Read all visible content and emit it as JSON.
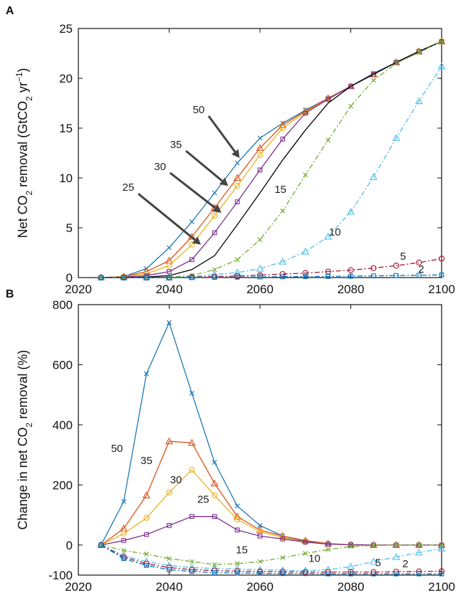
{
  "chart_data": [
    {
      "panel": "A",
      "type": "line",
      "ylabel_parts": [
        "Net CO",
        "2",
        " removal  (GtCO",
        "2",
        " yr",
        "−1",
        ")"
      ],
      "x": [
        2025,
        2030,
        2035,
        2040,
        2045,
        2050,
        2055,
        2060,
        2065,
        2070,
        2075,
        2080,
        2085,
        2090,
        2095,
        2100
      ],
      "xlim": [
        2020,
        2100
      ],
      "ylim": [
        0,
        25
      ],
      "xticks": [
        "2020",
        "2040",
        "2060",
        "2080",
        "2100"
      ],
      "yticks": [
        "0",
        "5",
        "10",
        "15",
        "20",
        "25"
      ],
      "grid": false,
      "series": [
        {
          "label": "50",
          "color": "#1f77b4",
          "dash": "solid",
          "marker": "x",
          "values": [
            0,
            0.1,
            0.9,
            3.0,
            5.6,
            8.5,
            11.5,
            14.0,
            15.5,
            16.8,
            18.0,
            19.2,
            20.5,
            21.6,
            22.6,
            23.7
          ]
        },
        {
          "label": "35",
          "color": "#d95319",
          "dash": "solid",
          "marker": "triangle",
          "values": [
            0,
            0.1,
            0.6,
            1.7,
            4.1,
            7.0,
            10.0,
            13.0,
            15.3,
            16.7,
            18.0,
            19.2,
            20.4,
            21.6,
            22.7,
            23.7
          ]
        },
        {
          "label": "30",
          "color": "#edb120",
          "dash": "solid",
          "marker": "circle",
          "values": [
            0,
            0.1,
            0.4,
            1.2,
            3.3,
            6.2,
            9.2,
            12.3,
            15.0,
            16.6,
            17.9,
            19.2,
            20.4,
            21.6,
            22.7,
            23.7
          ]
        },
        {
          "label": "25",
          "color": "#7e2f8e",
          "dash": "solid",
          "marker": "square",
          "values": [
            0,
            0.05,
            0.2,
            0.6,
            1.8,
            4.5,
            7.6,
            10.8,
            13.9,
            16.5,
            17.9,
            19.2,
            20.4,
            21.6,
            22.7,
            23.7
          ]
        },
        {
          "label": "15",
          "color": "#000000",
          "dash": "solid",
          "marker": "none",
          "values": [
            0,
            0,
            0.05,
            0.2,
            0.8,
            2.2,
            5.3,
            8.5,
            11.8,
            14.8,
            17.5,
            19.2,
            20.4,
            21.6,
            22.7,
            23.7
          ]
        },
        {
          "label": "10",
          "color": "#77ac30",
          "dash": "dashdot",
          "marker": "x",
          "values": [
            0,
            0,
            0,
            0.05,
            0.2,
            0.8,
            1.8,
            3.8,
            6.7,
            10.3,
            13.8,
            17.2,
            19.8,
            21.5,
            22.6,
            23.7
          ]
        },
        {
          "label": "5",
          "color": "#4dbeee",
          "dash": "dashdot",
          "marker": "triangle",
          "values": [
            0,
            0,
            0,
            0,
            0.1,
            0.3,
            0.5,
            0.9,
            1.6,
            2.6,
            4.1,
            6.6,
            10.1,
            14.0,
            17.7,
            21.2
          ]
        },
        {
          "label": "2",
          "color": "#a2142f",
          "dash": "dashdot",
          "marker": "circle",
          "values": [
            0,
            0,
            0,
            0,
            0.05,
            0.1,
            0.15,
            0.25,
            0.35,
            0.45,
            0.6,
            0.75,
            0.95,
            1.2,
            1.5,
            1.9
          ]
        },
        {
          "label": "",
          "color": "#0072bd",
          "dash": "dashdot",
          "marker": "square",
          "values": [
            0,
            0,
            0,
            0,
            0,
            0.02,
            0.04,
            0.06,
            0.08,
            0.1,
            0.12,
            0.14,
            0.17,
            0.2,
            0.23,
            0.27
          ]
        }
      ],
      "annotations": [
        {
          "text": "50",
          "x": 2046.5,
          "y": 16.5,
          "arrow_to": [
            2055.5,
            12.0
          ]
        },
        {
          "text": "35",
          "x": 2041.5,
          "y": 13.0,
          "arrow_to": [
            2053,
            9.2
          ]
        },
        {
          "text": "30",
          "x": 2038,
          "y": 10.8,
          "arrow_to": [
            2051.5,
            6.5
          ]
        },
        {
          "text": "25",
          "x": 2031,
          "y": 8.7,
          "arrow_to": [
            2047,
            3.3
          ]
        },
        {
          "text": "15",
          "x": 2064.5,
          "y": 8.5
        },
        {
          "text": "10",
          "x": 2076.5,
          "y": 4.2
        },
        {
          "text": "5",
          "x": 2091.5,
          "y": 1.8
        },
        {
          "text": "2",
          "x": 2095.5,
          "y": 0.5
        }
      ]
    },
    {
      "panel": "B",
      "type": "line",
      "ylabel_parts": [
        "Change in net CO",
        "2",
        " removal  (%)"
      ],
      "x": [
        2025,
        2030,
        2035,
        2040,
        2045,
        2050,
        2055,
        2060,
        2065,
        2070,
        2075,
        2080,
        2085,
        2090,
        2095,
        2100
      ],
      "xlim": [
        2020,
        2100
      ],
      "ylim": [
        -100,
        800
      ],
      "xticks": [
        "2020",
        "2040",
        "2060",
        "2080",
        "2100"
      ],
      "yticks": [
        "-100",
        "0",
        "200",
        "400",
        "600",
        "800"
      ],
      "grid": false,
      "series": [
        {
          "label": "50",
          "color": "#1f77b4",
          "dash": "solid",
          "marker": "x",
          "values": [
            0,
            145,
            570,
            740,
            505,
            275,
            130,
            65,
            30,
            12,
            4,
            1,
            0,
            0,
            0,
            0
          ]
        },
        {
          "label": "35",
          "color": "#d95319",
          "dash": "solid",
          "marker": "triangle",
          "values": [
            0,
            55,
            165,
            345,
            340,
            205,
            95,
            50,
            30,
            15,
            5,
            1,
            0,
            0,
            0,
            0
          ]
        },
        {
          "label": "30",
          "color": "#edb120",
          "dash": "solid",
          "marker": "circle",
          "values": [
            0,
            38,
            90,
            175,
            250,
            165,
            85,
            45,
            25,
            10,
            3,
            1,
            0,
            0,
            0,
            0
          ]
        },
        {
          "label": "25",
          "color": "#7e2f8e",
          "dash": "solid",
          "marker": "square",
          "values": [
            0,
            15,
            35,
            65,
            95,
            95,
            50,
            30,
            20,
            10,
            3,
            1,
            0,
            0,
            0,
            0
          ]
        },
        {
          "label": "15",
          "color": "#77ac30",
          "dash": "dashdot",
          "marker": "x",
          "values": [
            0,
            -18,
            -30,
            -45,
            -55,
            -65,
            -62,
            -55,
            -42,
            -28,
            -15,
            -5,
            -1,
            0,
            0,
            0
          ]
        },
        {
          "label": "10",
          "color": "#4dbeee",
          "dash": "dashdot",
          "marker": "triangle",
          "values": [
            0,
            -35,
            -55,
            -68,
            -75,
            -78,
            -80,
            -82,
            -84,
            -85,
            -82,
            -72,
            -55,
            -40,
            -25,
            -12
          ]
        },
        {
          "label": "5",
          "color": "#a2142f",
          "dash": "dashdot",
          "marker": "circle",
          "values": [
            0,
            -40,
            -62,
            -75,
            -82,
            -85,
            -87,
            -88,
            -89,
            -90,
            -90,
            -90,
            -90,
            -89,
            -88,
            -87
          ]
        },
        {
          "label": "2",
          "color": "#0072bd",
          "dash": "dashdot",
          "marker": "square",
          "values": [
            0,
            -45,
            -68,
            -82,
            -88,
            -92,
            -93,
            -94,
            -95,
            -95,
            -96,
            -96,
            -96,
            -96,
            -96,
            -96
          ]
        }
      ],
      "annotations": [
        {
          "text": "50",
          "x": 2028.5,
          "y": 310
        },
        {
          "text": "35",
          "x": 2035,
          "y": 270
        },
        {
          "text": "30",
          "x": 2041.5,
          "y": 205
        },
        {
          "text": "25",
          "x": 2047.5,
          "y": 140
        },
        {
          "text": "15",
          "x": 2056,
          "y": -28
        },
        {
          "text": "10",
          "x": 2072,
          "y": -56
        },
        {
          "text": "5",
          "x": 2086,
          "y": -70
        },
        {
          "text": "2",
          "x": 2092,
          "y": -74
        }
      ]
    }
  ]
}
